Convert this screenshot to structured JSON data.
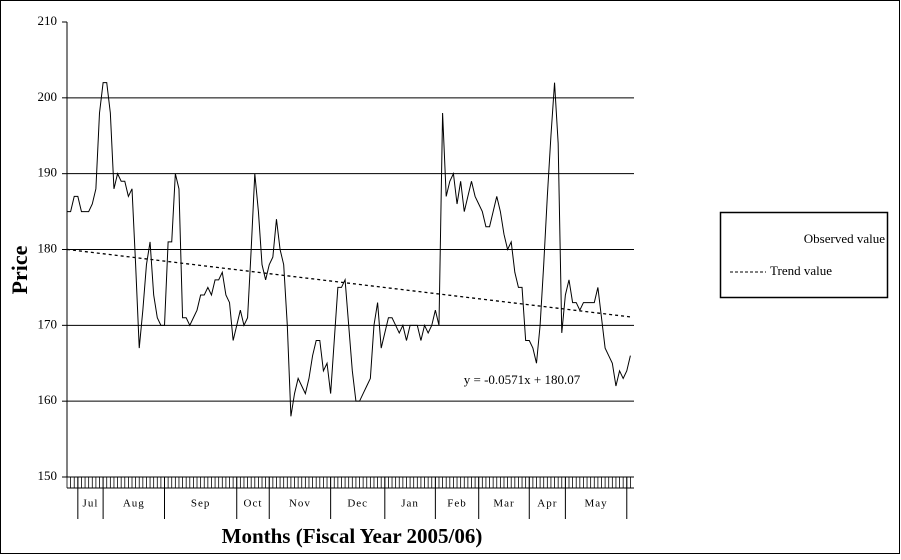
{
  "chart_data": {
    "type": "line",
    "x_label": "Months (Fiscal Year 2005/06)",
    "y_label": "Price",
    "annotation": "y = -0.0571x + 180.07",
    "x_months": [
      "Jul",
      "Aug",
      "Sep",
      "Oct",
      "Nov",
      "Dec",
      "Jan",
      "Feb",
      "Mar",
      "Apr",
      "May"
    ],
    "x_month_edges": [
      4,
      11,
      28,
      48,
      57,
      74,
      89,
      103,
      115,
      129,
      139,
      156
    ],
    "x": [
      1,
      2,
      3,
      4,
      5,
      6,
      7,
      8,
      9,
      10,
      11,
      12,
      13,
      14,
      15,
      16,
      17,
      18,
      19,
      20,
      21,
      22,
      23,
      24,
      25,
      26,
      27,
      28,
      29,
      30,
      31,
      32,
      33,
      34,
      35,
      36,
      37,
      38,
      39,
      40,
      41,
      42,
      43,
      44,
      45,
      46,
      47,
      48,
      49,
      50,
      51,
      52,
      53,
      54,
      55,
      56,
      57,
      58,
      59,
      60,
      61,
      62,
      63,
      64,
      65,
      66,
      67,
      68,
      69,
      70,
      71,
      72,
      73,
      74,
      75,
      76,
      77,
      78,
      79,
      80,
      81,
      82,
      83,
      84,
      85,
      86,
      87,
      88,
      89,
      90,
      91,
      92,
      93,
      94,
      95,
      96,
      97,
      98,
      99,
      100,
      101,
      102,
      103,
      104,
      105,
      106,
      107,
      108,
      109,
      110,
      111,
      112,
      113,
      114,
      115,
      116,
      117,
      118,
      119,
      120,
      121,
      122,
      123,
      124,
      125,
      126,
      127,
      128,
      129,
      130,
      131,
      132,
      133,
      134,
      135,
      136,
      137,
      138,
      139,
      140,
      141,
      142,
      143,
      144,
      145,
      146,
      147,
      148,
      149,
      150,
      151,
      152,
      153,
      154,
      155,
      156,
      157
    ],
    "series": [
      {
        "name": "Observed value",
        "color": "#000000",
        "style": "solid",
        "values": [
          185,
          185,
          187,
          187,
          185,
          185,
          185,
          186,
          188,
          198,
          202,
          202,
          198,
          188,
          190,
          189,
          189,
          187,
          188,
          178,
          167,
          172,
          178,
          181,
          174,
          171,
          170,
          170,
          181,
          181,
          190,
          188,
          171,
          171,
          170,
          171,
          172,
          174,
          174,
          175,
          174,
          176,
          176,
          177,
          174,
          173,
          168,
          170,
          172,
          170,
          171,
          180,
          190,
          185,
          178,
          176,
          178,
          179,
          184,
          180,
          178,
          170,
          158,
          161,
          163,
          162,
          161,
          163,
          166,
          168,
          168,
          164,
          165,
          161,
          168,
          175,
          175,
          176,
          170,
          164,
          160,
          160,
          161,
          162,
          163,
          170,
          173,
          167,
          169,
          171,
          171,
          170,
          169,
          170,
          168,
          170,
          170,
          170,
          168,
          170,
          169,
          170,
          172,
          170,
          198,
          187,
          189,
          190,
          186,
          189,
          185,
          187,
          189,
          187,
          186,
          185,
          183,
          183,
          185,
          187,
          185,
          182,
          180,
          181,
          177,
          175,
          175,
          168,
          168,
          167,
          165,
          170,
          178,
          187,
          195,
          202,
          194,
          169,
          174,
          176,
          173,
          173,
          172,
          173,
          173,
          173,
          173,
          175,
          171,
          167,
          166,
          165,
          162,
          164,
          163,
          164,
          166
        ]
      },
      {
        "name": "Trend value",
        "color": "#000000",
        "style": "dashed",
        "x": [
          1,
          157
        ],
        "values": [
          180.01,
          171.11
        ]
      }
    ],
    "xlim": [
      1,
      158
    ],
    "ylim": [
      150,
      210
    ],
    "yticks": [
      150,
      160,
      170,
      180,
      190,
      200,
      210
    ],
    "grid": true,
    "legend": "right"
  }
}
